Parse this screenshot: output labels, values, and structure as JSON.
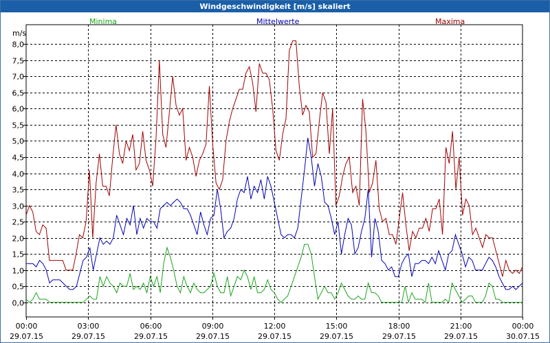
{
  "window": {
    "title": "Windgeschwindigkeit [m/s] skaliert"
  },
  "colors": {
    "min": "#1aa31a",
    "mean": "#0000b4",
    "max": "#a00000",
    "title_bg": "#1a5fa8"
  },
  "chart_data": {
    "type": "line",
    "title": "Windgeschwindigkeit [m/s] skaliert",
    "ylabel": "m/s",
    "xlabel": "",
    "ylim": [
      -0.45,
      8.6
    ],
    "xlim": [
      0,
      96
    ],
    "y_ticks": [
      0,
      0.5,
      1,
      1.5,
      2,
      2.5,
      3,
      3.5,
      4,
      4.5,
      5,
      5.5,
      6,
      6.5,
      7,
      7.5,
      8
    ],
    "y_tick_labels": [
      "0,0",
      "0,5",
      "1,0",
      "1,5",
      "2,0",
      "2,5",
      "3,0",
      "3,5",
      "4,0",
      "4,5",
      "5,0",
      "5,5",
      "6,0",
      "6,5",
      "7,0",
      "7,5",
      "8,0"
    ],
    "x_ticks": [
      0,
      12,
      24,
      36,
      48,
      60,
      72,
      84,
      96
    ],
    "x_tick_times": [
      "00:00",
      "03:00",
      "06:00",
      "09:00",
      "12:00",
      "15:00",
      "18:00",
      "21:00",
      "00:00"
    ],
    "x_tick_dates": [
      "29.07.15",
      "29.07.15",
      "29.07.15",
      "29.07.15",
      "29.07.15",
      "29.07.15",
      "29.07.15",
      "29.07.15",
      "30.07.15"
    ],
    "legend": [
      "Minima",
      "Mittelwerte",
      "Maxima"
    ],
    "x_unit": "15-minute intervals from 29.07.15 00:00",
    "series": [
      {
        "name": "Maxima",
        "values": [
          2.7,
          3.0,
          2.8,
          2.2,
          2.1,
          2.4,
          2.3,
          1.3,
          1.3,
          1.3,
          1.3,
          1.3,
          1.0,
          1.0,
          1.0,
          1.5,
          2.1,
          2.0,
          2.5,
          4.1,
          2.0,
          3.7,
          4.6,
          3.6,
          3.6,
          3.3,
          4.5,
          5.5,
          4.6,
          4.3,
          5.0,
          4.7,
          5.2,
          4.1,
          4.3,
          5.3,
          4.4,
          4.1,
          3.6,
          5.1,
          7.5,
          5.2,
          4.8,
          5.9,
          7.0,
          6.1,
          5.8,
          6.0,
          4.4,
          4.8,
          4.5,
          3.9,
          4.4,
          4.6,
          4.9,
          6.7,
          4.9,
          3.7,
          3.5,
          3.8,
          5.0,
          5.6,
          6.0,
          6.3,
          6.6,
          6.6,
          7.1,
          7.3,
          6.8,
          5.9,
          7.4,
          7.1,
          7.1,
          6.9,
          6.0,
          4.7,
          4.4,
          5.2,
          5.7,
          7.8,
          8.1,
          8.1,
          6.7,
          5.8,
          6.1,
          5.9,
          4.5,
          4.6,
          5.6,
          6.5,
          6.2,
          4.6,
          6.0,
          3.0,
          3.3,
          3.9,
          4.3,
          4.5,
          3.4,
          3.6,
          3.0,
          6.3,
          5.3,
          3.4,
          3.7,
          4.4,
          2.9,
          2.5,
          2.6,
          2.1,
          2.1,
          1.8,
          2.6,
          3.4,
          2.4,
          1.6,
          2.2,
          2.0,
          2.3,
          2.3,
          2.6,
          2.2,
          2.9,
          2.9,
          3.2,
          2.1,
          4.8,
          4.3,
          5.3,
          3.5,
          4.5,
          2.7,
          3.2,
          3.0,
          2.1,
          2.3,
          2.0,
          1.7,
          2.1,
          2.0,
          2.0,
          1.6,
          1.2,
          0.8,
          1.3,
          1.0,
          0.9,
          1.0,
          0.9,
          1.1
        ]
      },
      {
        "name": "Mittelwerte",
        "values": [
          1.2,
          1.2,
          1.2,
          1.1,
          1.3,
          1.2,
          1.0,
          0.6,
          0.7,
          0.7,
          0.7,
          0.6,
          0.5,
          0.4,
          0.4,
          0.5,
          0.9,
          1.3,
          1.4,
          1.7,
          1.0,
          1.5,
          2.0,
          1.8,
          1.9,
          1.8,
          2.0,
          2.7,
          2.4,
          2.1,
          2.6,
          2.4,
          3.0,
          2.1,
          2.6,
          2.3,
          2.6,
          2.5,
          2.5,
          2.3,
          2.9,
          3.0,
          3.1,
          3.0,
          3.1,
          3.2,
          3.1,
          2.9,
          2.9,
          2.7,
          2.4,
          2.1,
          2.8,
          2.4,
          2.1,
          2.6,
          2.7,
          3.5,
          2.9,
          2.0,
          2.2,
          2.3,
          2.6,
          3.2,
          3.5,
          3.4,
          3.9,
          3.2,
          3.6,
          3.4,
          3.8,
          3.2,
          3.9,
          3.6,
          3.1,
          2.6,
          2.1,
          2.0,
          2.1,
          2.1,
          2.0,
          2.3,
          3.2,
          4.1,
          5.1,
          4.5,
          3.6,
          4.3,
          3.9,
          3.1,
          3.0,
          2.6,
          2.1,
          2.5,
          1.5,
          2.1,
          2.6,
          2.4,
          1.5,
          1.7,
          2.2,
          2.6,
          3.5,
          1.4,
          2.6,
          2.2,
          1.3,
          1.2,
          1.0,
          1.1,
          0.8,
          0.8,
          1.2,
          1.4,
          1.5,
          0.8,
          1.2,
          1.2,
          1.3,
          1.3,
          1.2,
          1.4,
          1.2,
          1.6,
          1.3,
          1.0,
          1.5,
          1.6,
          2.1,
          1.8,
          1.5,
          1.1,
          1.4,
          1.3,
          1.0,
          1.0,
          1.0,
          1.2,
          1.4,
          1.3,
          1.1,
          0.8,
          0.6,
          0.4,
          0.4,
          0.5,
          0.4,
          0.5,
          0.6
        ]
      },
      {
        "name": "Minima",
        "values": [
          0.1,
          0.0,
          0.1,
          0.3,
          0.1,
          0.1,
          0.1,
          0.0,
          0.0,
          0.0,
          0.0,
          0.0,
          0.0,
          0.0,
          0.0,
          0.0,
          0.0,
          0.0,
          0.1,
          0.2,
          0.1,
          0.1,
          0.8,
          0.5,
          0.8,
          0.6,
          0.5,
          0.3,
          0.6,
          0.5,
          0.5,
          0.9,
          0.4,
          0.5,
          0.4,
          0.6,
          0.3,
          0.8,
          0.5,
          0.8,
          0.3,
          1.2,
          1.7,
          1.4,
          1.0,
          0.5,
          0.3,
          0.8,
          0.5,
          0.3,
          0.6,
          0.4,
          0.3,
          0.3,
          0.4,
          0.5,
          0.9,
          0.5,
          0.3,
          0.3,
          0.8,
          0.2,
          0.5,
          0.8,
          0.7,
          1.0,
          0.8,
          0.4,
          0.8,
          0.3,
          0.3,
          0.4,
          0.7,
          0.4,
          0.3,
          0.1,
          0.0,
          0.1,
          0.2,
          0.5,
          0.8,
          1.1,
          1.4,
          1.8,
          1.8,
          1.5,
          0.8,
          0.1,
          0.3,
          0.5,
          0.3,
          0.3,
          0.1,
          0.3,
          0.6,
          0.4,
          0.2,
          0.1,
          0.1,
          0.2,
          0.1,
          0.1,
          0.6,
          0.3,
          0.3,
          0.2,
          0.0,
          0.0,
          0.0,
          0.0,
          0.0,
          0.0,
          0.0,
          0.5,
          0.0,
          0.3,
          0.1,
          0.1,
          0.1,
          0.0,
          0.6,
          0.0,
          0.0,
          0.0,
          0.0,
          0.1,
          0.0,
          0.6,
          0.4,
          0.2,
          0.0,
          0.1,
          0.2,
          0.2,
          0.0,
          0.0,
          0.0,
          0.2,
          0.6,
          0.5,
          0.1,
          0.1,
          0.0,
          0.0,
          0.0,
          0.0,
          0.0,
          0.0,
          0.0
        ]
      }
    ]
  }
}
